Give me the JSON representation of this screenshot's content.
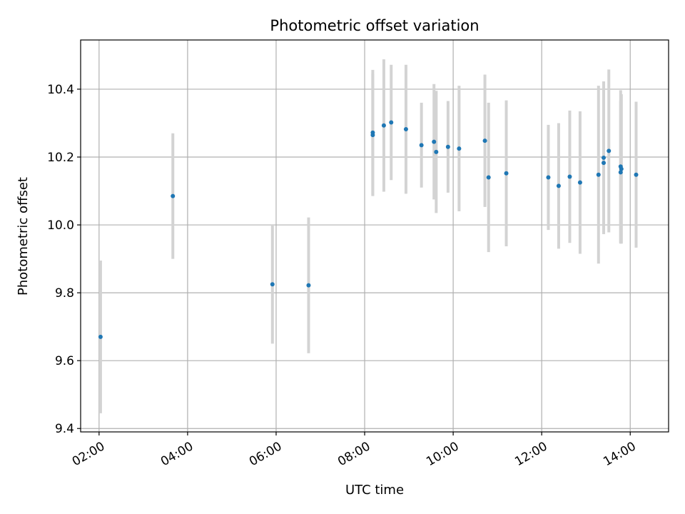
{
  "chart_data": {
    "type": "scatter",
    "title": "Photometric offset variation",
    "xlabel": "UTC time",
    "ylabel": "Photometric offset",
    "x_tick_labels": [
      "02:00",
      "04:00",
      "06:00",
      "08:00",
      "10:00",
      "12:00",
      "14:00"
    ],
    "y_tick_labels": [
      "9.4",
      "9.6",
      "9.8",
      "10.0",
      "10.2",
      "10.4"
    ],
    "xlim": [
      "01:35",
      "14:52"
    ],
    "ylim": [
      9.39,
      10.545
    ],
    "grid": true,
    "points": [
      {
        "x": "02:02",
        "y": 9.67,
        "err": 0.225
      },
      {
        "x": "03:40",
        "y": 10.085,
        "err": 0.185
      },
      {
        "x": "05:55",
        "y": 9.825,
        "err": 0.175
      },
      {
        "x": "06:44",
        "y": 9.822,
        "err": 0.2
      },
      {
        "x": "08:11",
        "y": 10.272,
        "err": 0.185
      },
      {
        "x": "08:11",
        "y": 10.265,
        "err": 0.18
      },
      {
        "x": "08:26",
        "y": 10.293,
        "err": 0.195
      },
      {
        "x": "08:36",
        "y": 10.302,
        "err": 0.17
      },
      {
        "x": "08:56",
        "y": 10.282,
        "err": 0.19
      },
      {
        "x": "09:17",
        "y": 10.235,
        "err": 0.125
      },
      {
        "x": "09:34",
        "y": 10.245,
        "err": 0.17
      },
      {
        "x": "09:37",
        "y": 10.215,
        "err": 0.18
      },
      {
        "x": "09:53",
        "y": 10.23,
        "err": 0.135
      },
      {
        "x": "10:08",
        "y": 10.225,
        "err": 0.185
      },
      {
        "x": "10:43",
        "y": 10.248,
        "err": 0.195
      },
      {
        "x": "10:48",
        "y": 10.14,
        "err": 0.22
      },
      {
        "x": "11:12",
        "y": 10.152,
        "err": 0.215
      },
      {
        "x": "12:09",
        "y": 10.14,
        "err": 0.155
      },
      {
        "x": "12:23",
        "y": 10.115,
        "err": 0.185
      },
      {
        "x": "12:38",
        "y": 10.142,
        "err": 0.195
      },
      {
        "x": "12:52",
        "y": 10.125,
        "err": 0.21
      },
      {
        "x": "13:17",
        "y": 10.148,
        "err": 0.262
      },
      {
        "x": "13:24",
        "y": 10.198,
        "err": 0.225
      },
      {
        "x": "13:24",
        "y": 10.183,
        "err": 0.21
      },
      {
        "x": "13:31",
        "y": 10.218,
        "err": 0.24
      },
      {
        "x": "13:47",
        "y": 10.172,
        "err": 0.225
      },
      {
        "x": "13:47",
        "y": 10.155,
        "err": 0.21
      },
      {
        "x": "13:48",
        "y": 10.165,
        "err": 0.22
      },
      {
        "x": "14:08",
        "y": 10.148,
        "err": 0.215
      }
    ],
    "colors": {
      "marker": "#1f77b4",
      "errorbar": "#d3d3d3",
      "grid": "#b0b0b0",
      "axes": "#000000"
    }
  }
}
